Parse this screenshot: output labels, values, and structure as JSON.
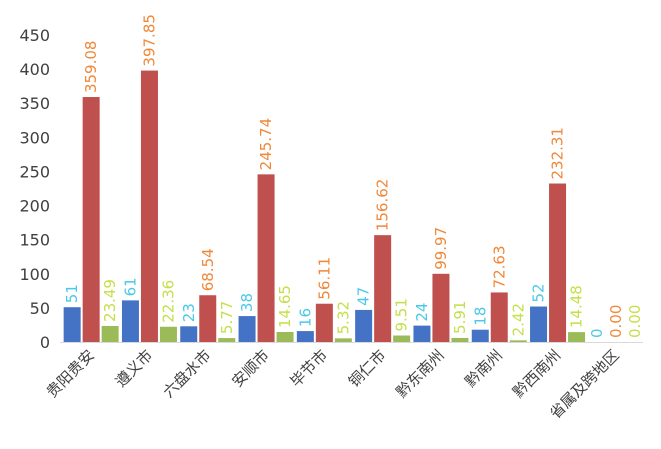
{
  "chart_data": {
    "type": "bar",
    "title": "",
    "xlabel": "",
    "ylabel": "",
    "ylim": [
      0,
      450
    ],
    "yticks": [
      0,
      50,
      100,
      150,
      200,
      250,
      300,
      350,
      400,
      450
    ],
    "grid": false,
    "legend": "none",
    "categories": [
      "贵阳贵安",
      "遵义市",
      "六盘水市",
      "安顺市",
      "毕节市",
      "铜仁市",
      "黔东南州",
      "黔南州",
      "黔西南州",
      "省属及跨地区"
    ],
    "series": [
      {
        "values": [
          51,
          61,
          23,
          38,
          16,
          47,
          24,
          18,
          52,
          0
        ],
        "labels": [
          "51",
          "61",
          "23",
          "38",
          "16",
          "47",
          "24",
          "18",
          "52",
          "0"
        ],
        "color": "#4472C4",
        "label_color": "#4BC8E8"
      },
      {
        "values": [
          359.08,
          397.85,
          68.54,
          245.74,
          56.11,
          156.62,
          99.97,
          72.63,
          232.31,
          0
        ],
        "labels": [
          "359.08",
          "397.85",
          "68.54",
          "245.74",
          "56.11",
          "156.62",
          "99.97",
          "72.63",
          "232.31",
          "0.00"
        ],
        "color": "#C0504D",
        "label_color": "#F0883A"
      },
      {
        "values": [
          23.49,
          22.36,
          5.77,
          14.65,
          5.32,
          9.51,
          5.91,
          2.42,
          14.48,
          0
        ],
        "labels": [
          "23.49",
          "22.36",
          "5.77",
          "14.65",
          "5.32",
          "9.51",
          "5.91",
          "2.42",
          "14.48",
          "0.00"
        ],
        "color": "#9BBB59",
        "label_color": "#C4E04A"
      }
    ]
  }
}
